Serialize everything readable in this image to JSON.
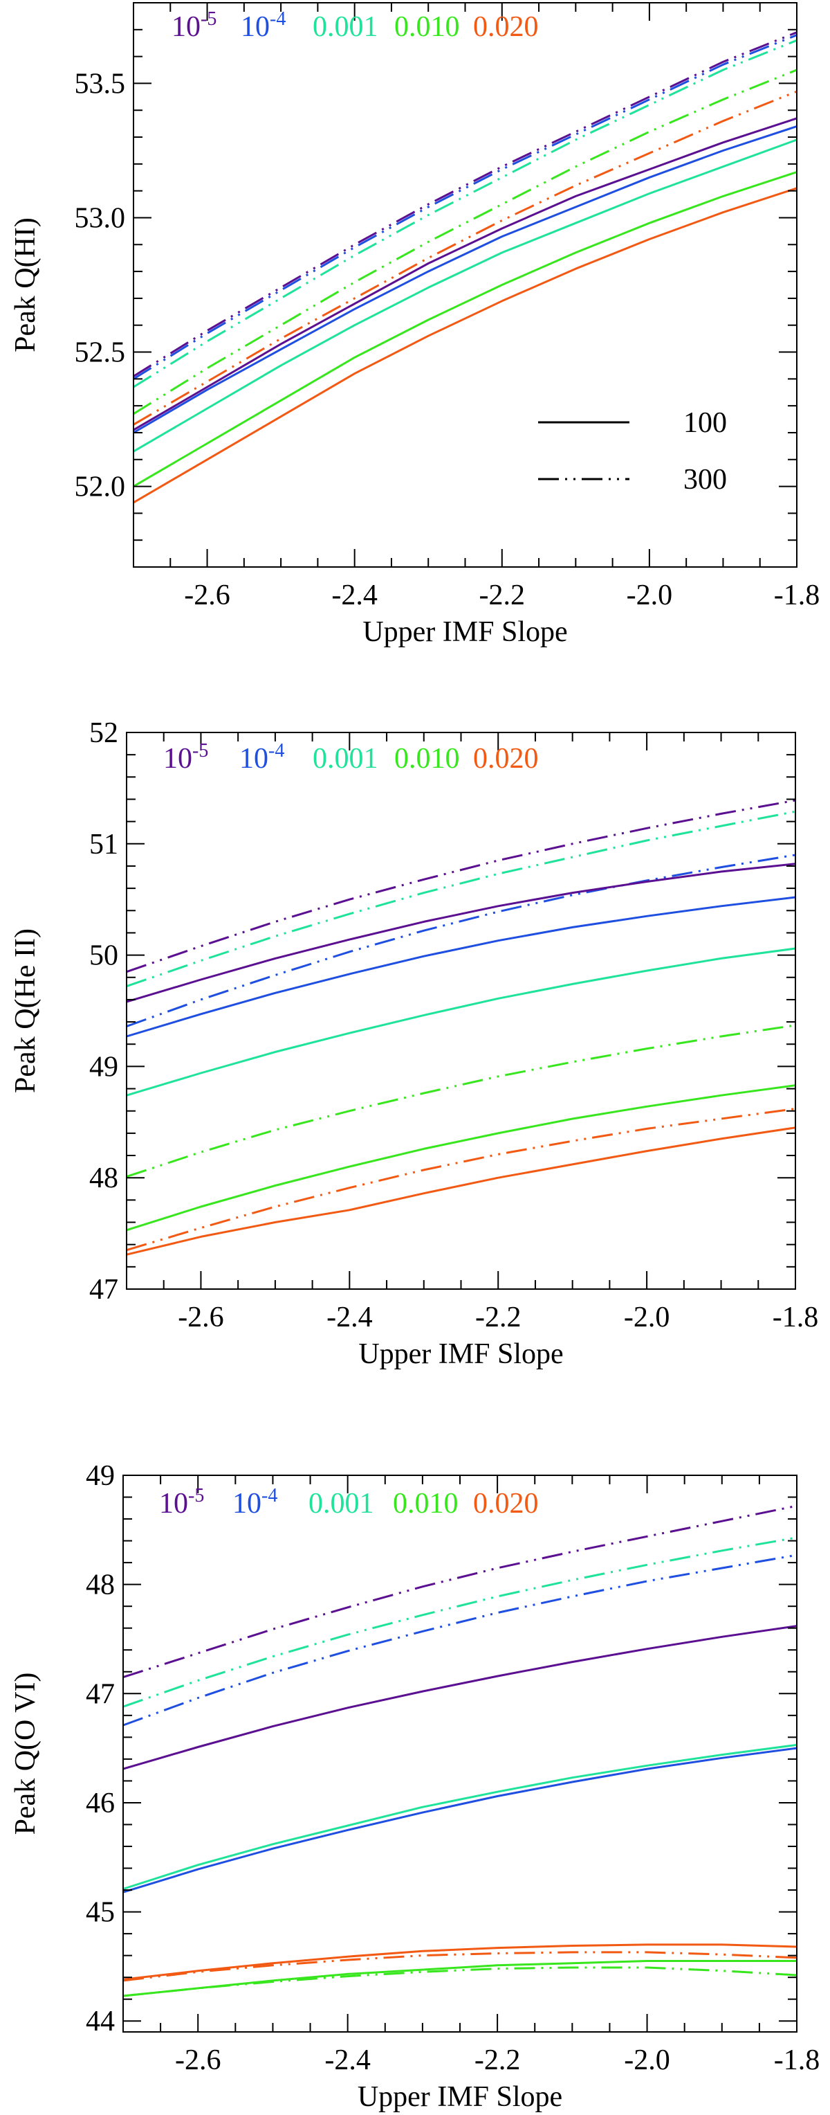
{
  "colors": {
    "1e-5": "#5b0f91",
    "1e-4": "#1f4fe0",
    "0.001": "#1fe39a",
    "0.010": "#38e61e",
    "0.020": "#f25a14",
    "axis": "#000000"
  },
  "chart_data": [
    {
      "type": "line",
      "title": "",
      "xlabel": "Upper IMF Slope",
      "ylabel": "Peak Q(HI)",
      "xlim": [
        -2.7,
        -1.8
      ],
      "ylim": [
        51.7,
        53.8
      ],
      "xticks": [
        -2.6,
        -2.4,
        -2.2,
        -2.0,
        -1.8
      ],
      "xtick_labels": [
        "-2.6",
        "-2.4",
        "-2.2",
        "-2.0",
        "-1.8"
      ],
      "yticks": [
        52.0,
        52.5,
        53.0,
        53.5
      ],
      "ytick_labels": [
        "52.0",
        "52.5",
        "53.0",
        "53.5"
      ],
      "x": [
        -2.7,
        -2.6,
        -2.5,
        -2.4,
        -2.3,
        -2.2,
        -2.1,
        -2.0,
        -1.9,
        -1.8
      ],
      "metallicity_legend": [
        {
          "key": "1e-5",
          "base": "10",
          "exp": "-5"
        },
        {
          "key": "1e-4",
          "base": "10",
          "exp": "-4"
        },
        {
          "key": "0.001",
          "label": "0.001"
        },
        {
          "key": "0.010",
          "label": "0.010"
        },
        {
          "key": "0.020",
          "label": "0.020"
        }
      ],
      "style_legend": [
        {
          "style": "solid",
          "label": "100"
        },
        {
          "style": "dashdot",
          "label": "300"
        }
      ],
      "series": [
        {
          "name": "10^-5, 100",
          "z": "1e-5",
          "style": "solid",
          "values": [
            52.21,
            52.37,
            52.53,
            52.68,
            52.83,
            52.96,
            53.08,
            53.18,
            53.28,
            53.37
          ]
        },
        {
          "name": "10^-4, 100",
          "z": "1e-4",
          "style": "solid",
          "values": [
            52.2,
            52.36,
            52.51,
            52.66,
            52.8,
            52.93,
            53.04,
            53.15,
            53.25,
            53.34
          ]
        },
        {
          "name": "0.001, 100",
          "z": "0.001",
          "style": "solid",
          "values": [
            52.13,
            52.29,
            52.45,
            52.6,
            52.74,
            52.87,
            52.98,
            53.09,
            53.19,
            53.29
          ]
        },
        {
          "name": "0.010, 100",
          "z": "0.010",
          "style": "solid",
          "values": [
            52.0,
            52.16,
            52.32,
            52.48,
            52.62,
            52.75,
            52.87,
            52.98,
            53.08,
            53.17
          ]
        },
        {
          "name": "0.020, 100",
          "z": "0.020",
          "style": "solid",
          "values": [
            51.94,
            52.1,
            52.26,
            52.42,
            52.56,
            52.69,
            52.81,
            52.92,
            53.02,
            53.11
          ]
        },
        {
          "name": "10^-5, 300",
          "z": "1e-5",
          "style": "dashdot",
          "values": [
            52.41,
            52.58,
            52.74,
            52.9,
            53.05,
            53.19,
            53.32,
            53.45,
            53.58,
            53.69
          ]
        },
        {
          "name": "10^-4, 300",
          "z": "1e-4",
          "style": "dashdot",
          "values": [
            52.4,
            52.57,
            52.73,
            52.89,
            53.04,
            53.18,
            53.31,
            53.44,
            53.57,
            53.68
          ]
        },
        {
          "name": "0.001, 300",
          "z": "0.001",
          "style": "dashdot",
          "values": [
            52.37,
            52.54,
            52.7,
            52.86,
            53.01,
            53.15,
            53.29,
            53.42,
            53.55,
            53.66
          ]
        },
        {
          "name": "0.010, 300",
          "z": "0.010",
          "style": "dashdot",
          "values": [
            52.27,
            52.44,
            52.6,
            52.76,
            52.91,
            53.05,
            53.19,
            53.32,
            53.44,
            53.55
          ]
        },
        {
          "name": "0.020, 300",
          "z": "0.020",
          "style": "dashdot",
          "values": [
            52.23,
            52.39,
            52.55,
            52.7,
            52.85,
            52.99,
            53.12,
            53.24,
            53.36,
            53.47
          ]
        }
      ]
    },
    {
      "type": "line",
      "title": "",
      "xlabel": "Upper IMF Slope",
      "ylabel": "Peak Q(He II)",
      "xlim": [
        -2.7,
        -1.8
      ],
      "ylim": [
        47.0,
        52.0
      ],
      "xticks": [
        -2.6,
        -2.4,
        -2.2,
        -2.0,
        -1.8
      ],
      "xtick_labels": [
        "-2.6",
        "-2.4",
        "-2.2",
        "-2.0",
        "-1.8"
      ],
      "yticks": [
        47,
        48,
        49,
        50,
        51,
        52
      ],
      "ytick_labels": [
        "47",
        "48",
        "49",
        "50",
        "51",
        "52"
      ],
      "x": [
        -2.7,
        -2.6,
        -2.5,
        -2.4,
        -2.3,
        -2.2,
        -2.1,
        -2.0,
        -1.9,
        -1.8
      ],
      "metallicity_legend": [
        {
          "key": "1e-5",
          "base": "10",
          "exp": "-5"
        },
        {
          "key": "1e-4",
          "base": "10",
          "exp": "-4"
        },
        {
          "key": "0.001",
          "label": "0.001"
        },
        {
          "key": "0.010",
          "label": "0.010"
        },
        {
          "key": "0.020",
          "label": "0.020"
        }
      ],
      "series": [
        {
          "name": "10^-5, 300",
          "z": "1e-5",
          "style": "dashdot",
          "values": [
            49.85,
            50.08,
            50.3,
            50.5,
            50.68,
            50.85,
            51.0,
            51.14,
            51.27,
            51.39
          ]
        },
        {
          "name": "0.001, 300",
          "z": "0.001",
          "style": "dashdot",
          "values": [
            49.72,
            49.95,
            50.17,
            50.37,
            50.56,
            50.73,
            50.88,
            51.03,
            51.16,
            51.29
          ]
        },
        {
          "name": "10^-4, 300",
          "z": "1e-4",
          "style": "dashdot",
          "values": [
            49.36,
            49.6,
            49.82,
            50.03,
            50.22,
            50.39,
            50.54,
            50.67,
            50.79,
            50.9
          ]
        },
        {
          "name": "10^-5, 100",
          "z": "1e-5",
          "style": "solid",
          "values": [
            49.58,
            49.78,
            49.97,
            50.14,
            50.3,
            50.44,
            50.56,
            50.66,
            50.75,
            50.82
          ]
        },
        {
          "name": "10^-4, 100",
          "z": "1e-4",
          "style": "solid",
          "values": [
            49.27,
            49.47,
            49.66,
            49.83,
            49.99,
            50.13,
            50.25,
            50.35,
            50.44,
            50.52
          ]
        },
        {
          "name": "0.001, 100",
          "z": "0.001",
          "style": "solid",
          "values": [
            48.74,
            48.94,
            49.13,
            49.3,
            49.46,
            49.61,
            49.74,
            49.86,
            49.97,
            50.06
          ]
        },
        {
          "name": "0.010, 300",
          "z": "0.010",
          "style": "dashdot",
          "values": [
            48.01,
            48.23,
            48.43,
            48.6,
            48.76,
            48.91,
            49.04,
            49.16,
            49.27,
            49.37
          ]
        },
        {
          "name": "0.010, 100",
          "z": "0.010",
          "style": "solid",
          "values": [
            47.53,
            47.74,
            47.93,
            48.1,
            48.26,
            48.4,
            48.53,
            48.64,
            48.74,
            48.83
          ]
        },
        {
          "name": "0.020, 300",
          "z": "0.020",
          "style": "dashdot",
          "values": [
            47.35,
            47.55,
            47.74,
            47.91,
            48.07,
            48.21,
            48.33,
            48.44,
            48.53,
            48.62
          ]
        },
        {
          "name": "0.020, 100",
          "z": "0.020",
          "style": "solid",
          "values": [
            47.31,
            47.47,
            47.6,
            47.71,
            47.86,
            48.0,
            48.12,
            48.24,
            48.35,
            48.45
          ]
        }
      ]
    },
    {
      "type": "line",
      "title": "",
      "xlabel": "Upper IMF Slope",
      "ylabel": "Peak Q(O VI)",
      "xlim": [
        -2.7,
        -1.8
      ],
      "ylim": [
        43.9,
        49.0
      ],
      "xticks": [
        -2.6,
        -2.4,
        -2.2,
        -2.0,
        -1.8
      ],
      "xtick_labels": [
        "-2.6",
        "-2.4",
        "-2.2",
        "-2.0",
        "-1.8"
      ],
      "yticks": [
        44,
        45,
        46,
        47,
        48,
        49
      ],
      "ytick_labels": [
        "44",
        "45",
        "46",
        "47",
        "48",
        "49"
      ],
      "x": [
        -2.7,
        -2.6,
        -2.5,
        -2.4,
        -2.3,
        -2.2,
        -2.1,
        -2.0,
        -1.9,
        -1.8
      ],
      "metallicity_legend": [
        {
          "key": "1e-5",
          "base": "10",
          "exp": "-5"
        },
        {
          "key": "1e-4",
          "base": "10",
          "exp": "-4"
        },
        {
          "key": "0.001",
          "label": "0.001"
        },
        {
          "key": "0.010",
          "label": "0.010"
        },
        {
          "key": "0.020",
          "label": "0.020"
        }
      ],
      "series": [
        {
          "name": "10^-5, 300",
          "z": "1e-5",
          "style": "dashdot",
          "values": [
            47.15,
            47.37,
            47.59,
            47.79,
            47.98,
            48.15,
            48.3,
            48.44,
            48.58,
            48.72
          ]
        },
        {
          "name": "0.001, 300",
          "z": "0.001",
          "style": "dashdot",
          "values": [
            46.88,
            47.12,
            47.34,
            47.54,
            47.72,
            47.89,
            48.04,
            48.18,
            48.31,
            48.43
          ]
        },
        {
          "name": "10^-4, 300",
          "z": "1e-4",
          "style": "dashdot",
          "values": [
            46.71,
            46.96,
            47.19,
            47.39,
            47.57,
            47.74,
            47.89,
            48.03,
            48.15,
            48.27
          ]
        },
        {
          "name": "10^-5, 100",
          "z": "1e-5",
          "style": "solid",
          "values": [
            46.31,
            46.51,
            46.7,
            46.87,
            47.02,
            47.16,
            47.29,
            47.41,
            47.52,
            47.62
          ]
        },
        {
          "name": "0.001, 100",
          "z": "0.001",
          "style": "solid",
          "values": [
            45.21,
            45.43,
            45.62,
            45.79,
            45.96,
            46.1,
            46.23,
            46.34,
            46.44,
            46.53
          ]
        },
        {
          "name": "10^-4, 100",
          "z": "1e-4",
          "style": "solid",
          "values": [
            45.18,
            45.39,
            45.58,
            45.75,
            45.91,
            46.06,
            46.19,
            46.31,
            46.41,
            46.5
          ]
        },
        {
          "name": "0.020, 100",
          "z": "0.020",
          "style": "solid",
          "values": [
            44.38,
            44.46,
            44.53,
            44.59,
            44.64,
            44.67,
            44.69,
            44.7,
            44.7,
            44.68
          ]
        },
        {
          "name": "0.020, 300",
          "z": "0.020",
          "style": "dashdot",
          "values": [
            44.37,
            44.45,
            44.51,
            44.56,
            44.6,
            44.62,
            44.63,
            44.63,
            44.61,
            44.58
          ]
        },
        {
          "name": "0.010, 100",
          "z": "0.010",
          "style": "solid",
          "values": [
            44.23,
            44.3,
            44.37,
            44.43,
            44.47,
            44.51,
            44.53,
            44.55,
            44.55,
            44.55
          ]
        },
        {
          "name": "0.010, 300",
          "z": "0.010",
          "style": "dashdot",
          "values": [
            44.23,
            44.3,
            44.36,
            44.41,
            44.45,
            44.48,
            44.49,
            44.49,
            44.46,
            44.42
          ]
        }
      ]
    }
  ]
}
